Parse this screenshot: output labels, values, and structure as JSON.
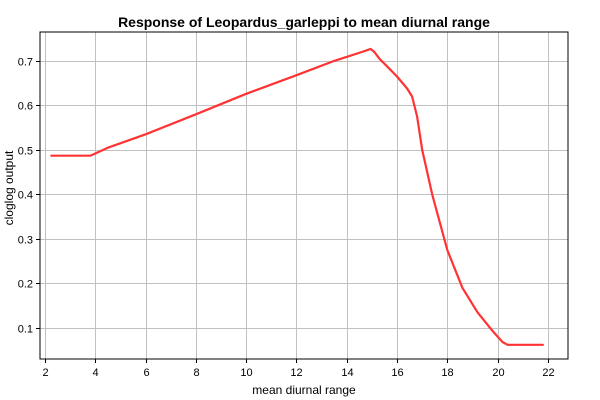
{
  "chart_data": {
    "type": "line",
    "title": "Response of Leopardus_garleppi to mean diurnal range",
    "xlabel": "mean diurnal range",
    "ylabel": "cloglog output",
    "xlim": [
      1.8,
      22.8
    ],
    "ylim": [
      0.03,
      0.765
    ],
    "xticks": [
      2,
      4,
      6,
      8,
      10,
      12,
      14,
      16,
      18,
      20,
      22
    ],
    "yticks": [
      0.1,
      0.2,
      0.3,
      0.4,
      0.5,
      0.6,
      0.7
    ],
    "grid": true,
    "colors": {
      "line": "#ff3333",
      "grid": "#c0c0c0",
      "axis": "#000000"
    },
    "series": [
      {
        "x": [
          2.25,
          3.8,
          4.5,
          6.0,
          8.0,
          10.0,
          12.0,
          13.5,
          14.6,
          14.95,
          15.1,
          15.3,
          15.6,
          16.0,
          16.4,
          16.6,
          16.8,
          17.0,
          17.4,
          18.0,
          18.6,
          19.2,
          19.8,
          20.2,
          20.4,
          21.8
        ],
        "y": [
          0.487,
          0.487,
          0.505,
          0.535,
          0.58,
          0.626,
          0.668,
          0.7,
          0.72,
          0.727,
          0.72,
          0.705,
          0.688,
          0.665,
          0.638,
          0.62,
          0.575,
          0.5,
          0.4,
          0.275,
          0.19,
          0.135,
          0.093,
          0.068,
          0.062,
          0.062
        ]
      }
    ]
  }
}
